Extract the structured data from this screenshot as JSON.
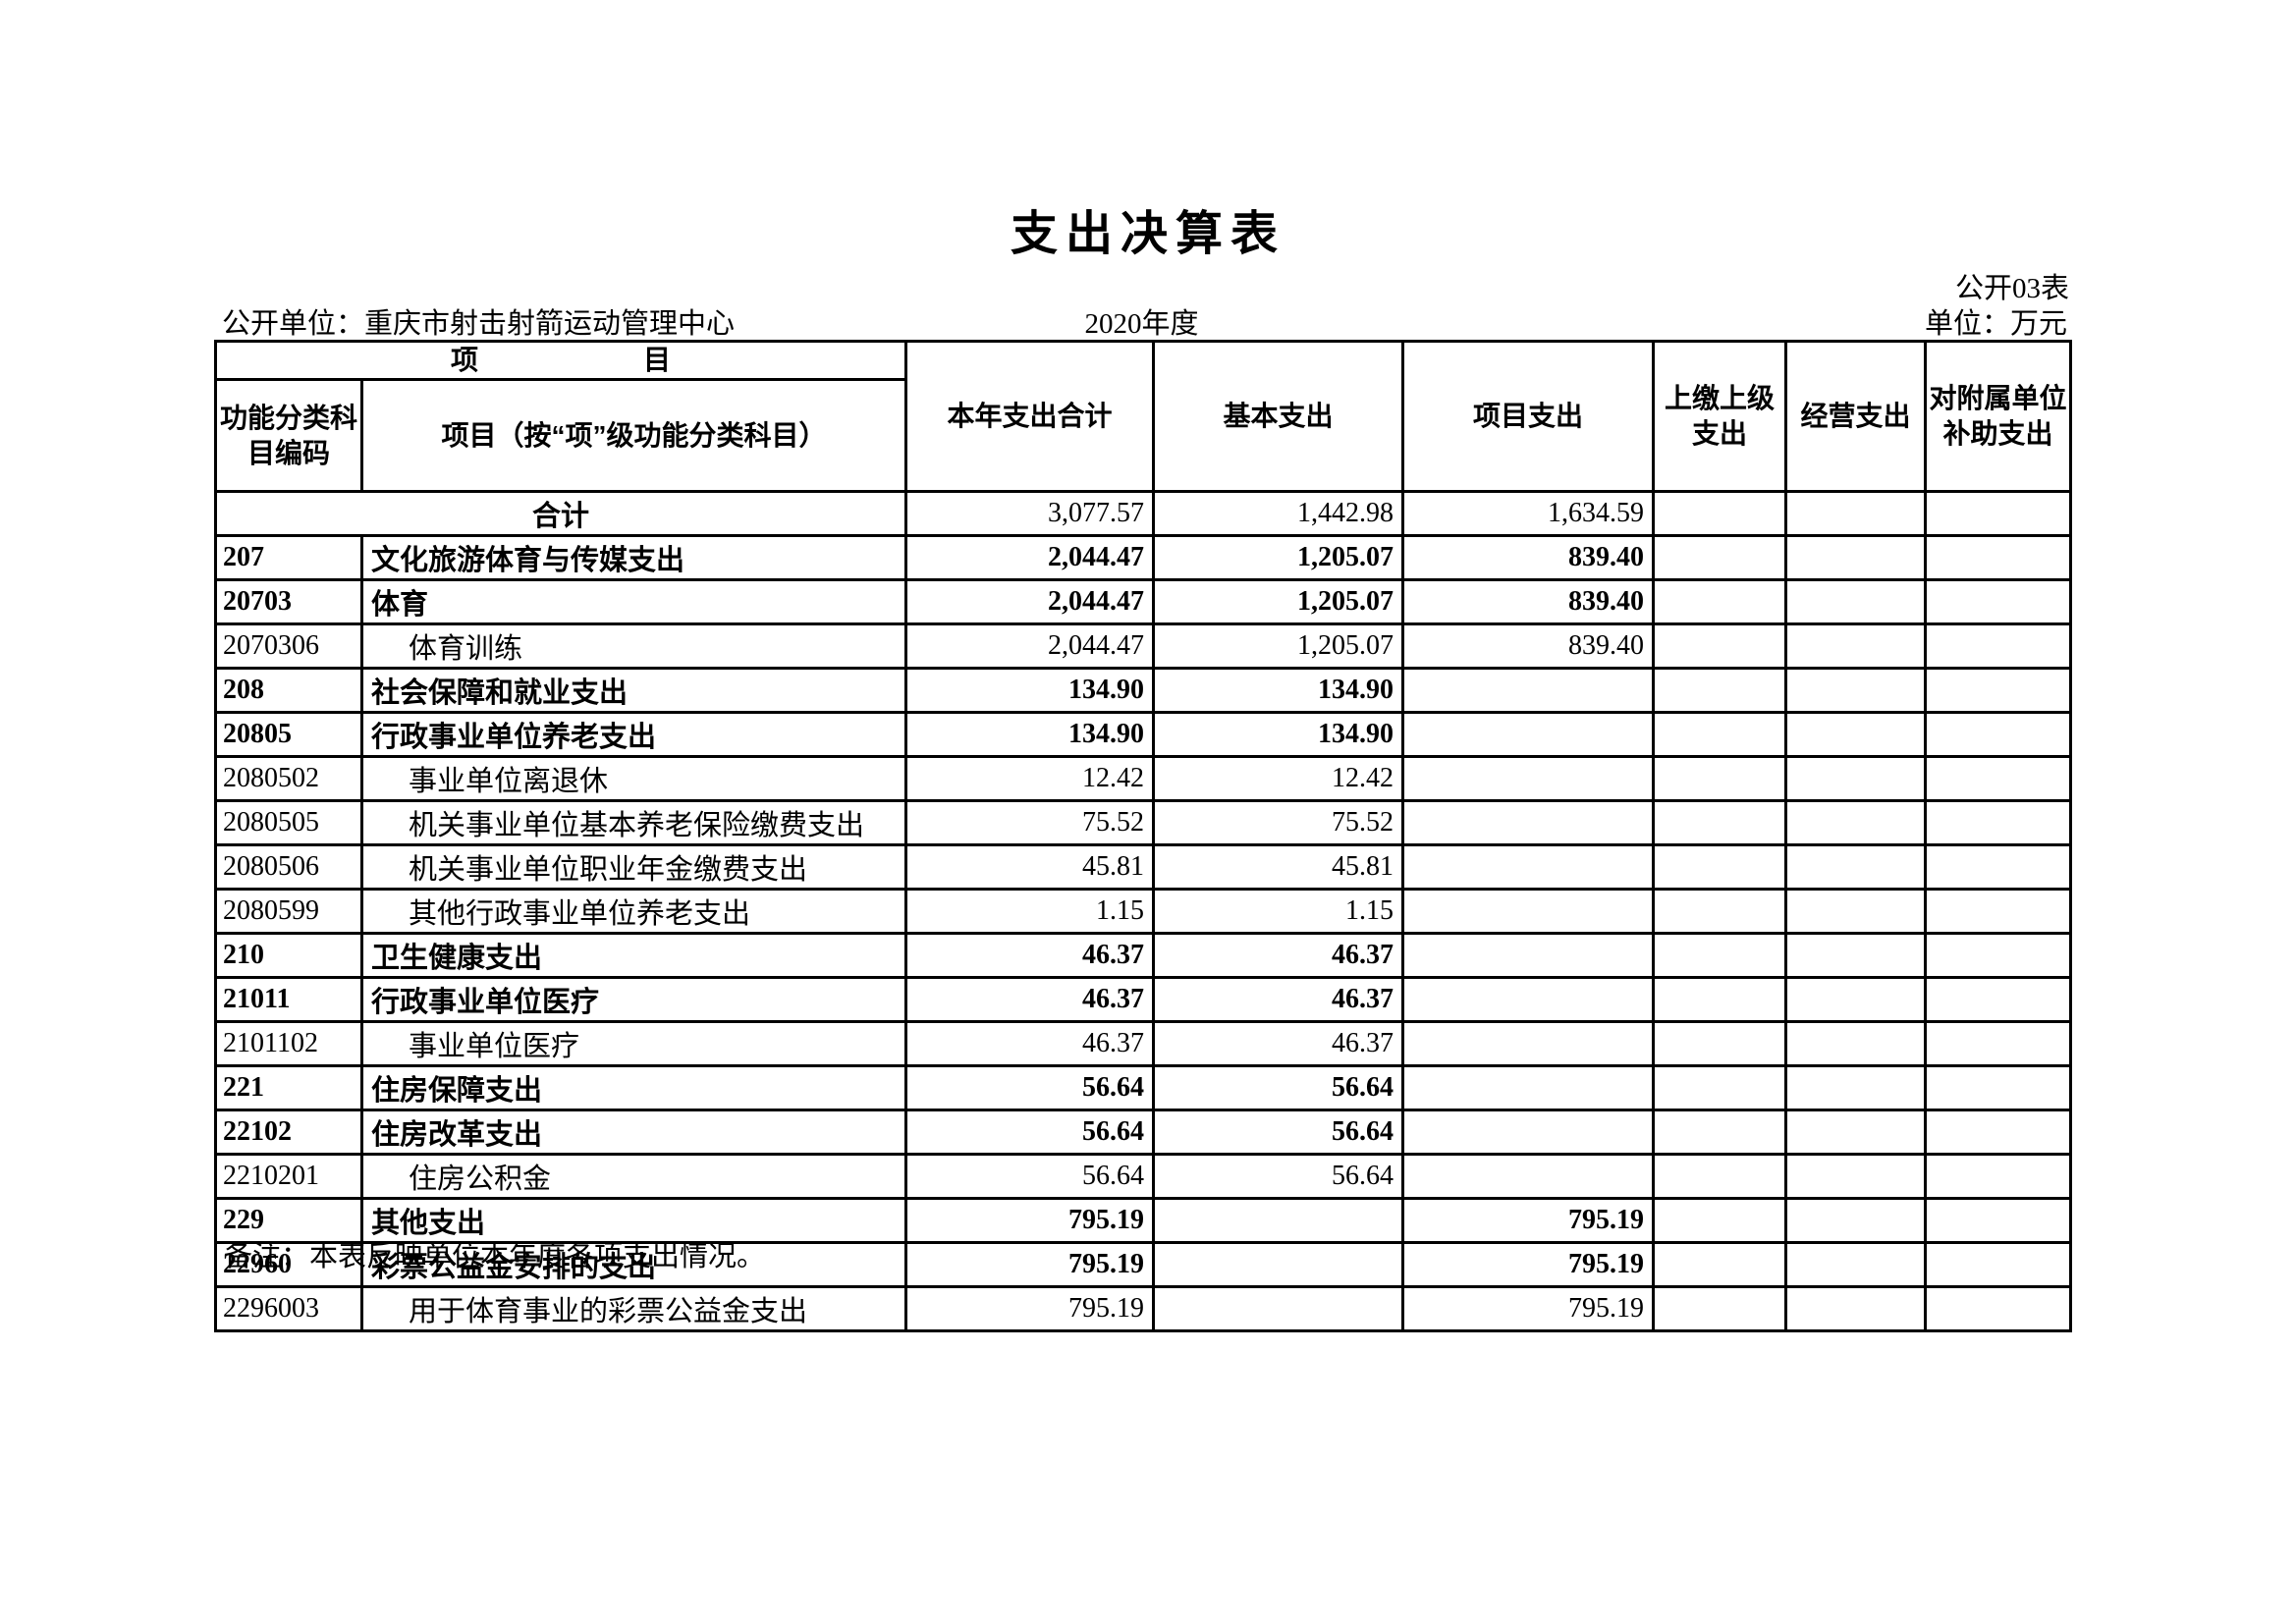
{
  "page": {
    "title": "支出决算表",
    "table_code": "公开03表",
    "publish_unit": "公开单位：重庆市射击射箭运动管理中心",
    "fiscal_year": "2020年度",
    "currency_unit": "单位：万元",
    "note": "备注：本表反映单位本年度各项支出情况。"
  },
  "table": {
    "header": {
      "item_group": "项　　　　　　目",
      "code_label": "功能分类科目编码",
      "item_label": "项目（按“项”级功能分类科目）",
      "columns": [
        "本年支出合计",
        "基本支出",
        "项目支出",
        "上缴上级支出",
        "经营支出",
        "对附属单位补助支出"
      ]
    },
    "total_row": {
      "label": "合计",
      "values": [
        "3,077.57",
        "1,442.98",
        "1,634.59",
        "",
        "",
        ""
      ]
    },
    "rows": [
      {
        "code": "207",
        "name": "文化旅游体育与传媒支出",
        "bold": true,
        "level": 1,
        "values": [
          "2,044.47",
          "1,205.07",
          "839.40",
          "",
          "",
          ""
        ]
      },
      {
        "code": "20703",
        "name": "体育",
        "bold": true,
        "level": 2,
        "values": [
          "2,044.47",
          "1,205.07",
          "839.40",
          "",
          "",
          ""
        ]
      },
      {
        "code": "2070306",
        "name": "体育训练",
        "bold": false,
        "level": 3,
        "values": [
          "2,044.47",
          "1,205.07",
          "839.40",
          "",
          "",
          ""
        ]
      },
      {
        "code": "208",
        "name": "社会保障和就业支出",
        "bold": true,
        "level": 1,
        "values": [
          "134.90",
          "134.90",
          "",
          "",
          "",
          ""
        ]
      },
      {
        "code": "20805",
        "name": "行政事业单位养老支出",
        "bold": true,
        "level": 2,
        "values": [
          "134.90",
          "134.90",
          "",
          "",
          "",
          ""
        ]
      },
      {
        "code": "2080502",
        "name": "事业单位离退休",
        "bold": false,
        "level": 3,
        "values": [
          "12.42",
          "12.42",
          "",
          "",
          "",
          ""
        ]
      },
      {
        "code": "2080505",
        "name": "机关事业单位基本养老保险缴费支出",
        "bold": false,
        "level": 3,
        "values": [
          "75.52",
          "75.52",
          "",
          "",
          "",
          ""
        ]
      },
      {
        "code": "2080506",
        "name": "机关事业单位职业年金缴费支出",
        "bold": false,
        "level": 3,
        "values": [
          "45.81",
          "45.81",
          "",
          "",
          "",
          ""
        ]
      },
      {
        "code": "2080599",
        "name": "其他行政事业单位养老支出",
        "bold": false,
        "level": 3,
        "values": [
          "1.15",
          "1.15",
          "",
          "",
          "",
          ""
        ]
      },
      {
        "code": "210",
        "name": "卫生健康支出",
        "bold": true,
        "level": 1,
        "values": [
          "46.37",
          "46.37",
          "",
          "",
          "",
          ""
        ]
      },
      {
        "code": "21011",
        "name": "行政事业单位医疗",
        "bold": true,
        "level": 2,
        "values": [
          "46.37",
          "46.37",
          "",
          "",
          "",
          ""
        ]
      },
      {
        "code": "2101102",
        "name": "事业单位医疗",
        "bold": false,
        "level": 3,
        "values": [
          "46.37",
          "46.37",
          "",
          "",
          "",
          ""
        ]
      },
      {
        "code": "221",
        "name": "住房保障支出",
        "bold": true,
        "level": 1,
        "values": [
          "56.64",
          "56.64",
          "",
          "",
          "",
          ""
        ]
      },
      {
        "code": "22102",
        "name": "住房改革支出",
        "bold": true,
        "level": 2,
        "values": [
          "56.64",
          "56.64",
          "",
          "",
          "",
          ""
        ]
      },
      {
        "code": "2210201",
        "name": "住房公积金",
        "bold": false,
        "level": 3,
        "values": [
          "56.64",
          "56.64",
          "",
          "",
          "",
          ""
        ]
      },
      {
        "code": "229",
        "name": "其他支出",
        "bold": true,
        "level": 1,
        "values": [
          "795.19",
          "",
          "795.19",
          "",
          "",
          ""
        ]
      },
      {
        "code": "22960",
        "name": "彩票公益金安排的支出",
        "bold": true,
        "level": 2,
        "values": [
          "795.19",
          "",
          "795.19",
          "",
          "",
          ""
        ]
      },
      {
        "code": "2296003",
        "name": "用于体育事业的彩票公益金支出",
        "bold": false,
        "level": 3,
        "values": [
          "795.19",
          "",
          "795.19",
          "",
          "",
          ""
        ]
      }
    ]
  }
}
